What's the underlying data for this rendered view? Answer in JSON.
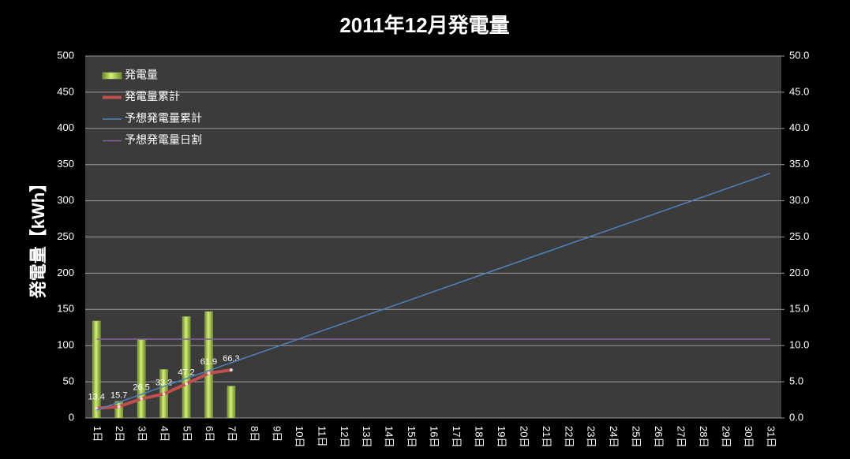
{
  "chart_data": {
    "type": "bar",
    "title": "2011年12月発電量",
    "y_label": "発電量【kWh】",
    "categories": [
      "1日",
      "2日",
      "3日",
      "4日",
      "5日",
      "6日",
      "7日",
      "8日",
      "9日",
      "10日",
      "11日",
      "12日",
      "13日",
      "14日",
      "15日",
      "16日",
      "17日",
      "18日",
      "19日",
      "20日",
      "21日",
      "22日",
      "23日",
      "24日",
      "25日",
      "26日",
      "27日",
      "28日",
      "29日",
      "30日",
      "31日"
    ],
    "series": [
      {
        "name": "発電量",
        "type": "bar",
        "color": "#9bbb59",
        "values": [
          134,
          23,
          108,
          67,
          140,
          147,
          44,
          null,
          null,
          null,
          null,
          null,
          null,
          null,
          null,
          null,
          null,
          null,
          null,
          null,
          null,
          null,
          null,
          null,
          null,
          null,
          null,
          null,
          null,
          null,
          null
        ]
      },
      {
        "name": "発電量累計",
        "type": "line",
        "color": "#c0504d",
        "markers": true,
        "data_labels": true,
        "values": [
          13.4,
          15.7,
          26.5,
          33.2,
          47.2,
          61.9,
          66.3,
          null,
          null,
          null,
          null,
          null,
          null,
          null,
          null,
          null,
          null,
          null,
          null,
          null,
          null,
          null,
          null,
          null,
          null,
          null,
          null,
          null,
          null,
          null,
          null
        ]
      },
      {
        "name": "予想発電量累計",
        "type": "line",
        "color": "#4f81bd",
        "values": [
          10.9,
          21.8,
          32.7,
          43.6,
          54.5,
          65.4,
          76.3,
          87.2,
          98.1,
          109,
          119.9,
          130.8,
          141.7,
          152.6,
          163.5,
          174.4,
          185.3,
          196.2,
          207.1,
          218,
          228.9,
          239.8,
          250.7,
          261.6,
          272.5,
          283.4,
          294.3,
          305.2,
          316.1,
          327,
          337.9
        ]
      },
      {
        "name": "予想発電量日割",
        "type": "line",
        "color": "#8064a2",
        "values": [
          109,
          109,
          109,
          109,
          109,
          109,
          109,
          109,
          109,
          109,
          109,
          109,
          109,
          109,
          109,
          109,
          109,
          109,
          109,
          109,
          109,
          109,
          109,
          109,
          109,
          109,
          109,
          109,
          109,
          109,
          109
        ]
      }
    ],
    "ylim": [
      0,
      500
    ],
    "yticks": [
      0,
      50,
      100,
      150,
      200,
      250,
      300,
      350,
      400,
      450,
      500
    ],
    "y2lim": [
      0,
      50
    ],
    "y2ticks": [
      {
        "value": 0,
        "label": "0.0"
      },
      {
        "value": 5,
        "label": "5.0"
      },
      {
        "value": 10,
        "label": "10.0"
      },
      {
        "value": 15,
        "label": "15.0"
      },
      {
        "value": 20,
        "label": "20.0"
      },
      {
        "value": 25,
        "label": "25.0"
      },
      {
        "value": 30,
        "label": "30.0"
      },
      {
        "value": 35,
        "label": "35.0"
      },
      {
        "value": 40,
        "label": "40.0"
      },
      {
        "value": 45,
        "label": "45.0"
      },
      {
        "value": 50,
        "label": "50.0"
      }
    ],
    "grid": true,
    "legend": "upper left"
  }
}
